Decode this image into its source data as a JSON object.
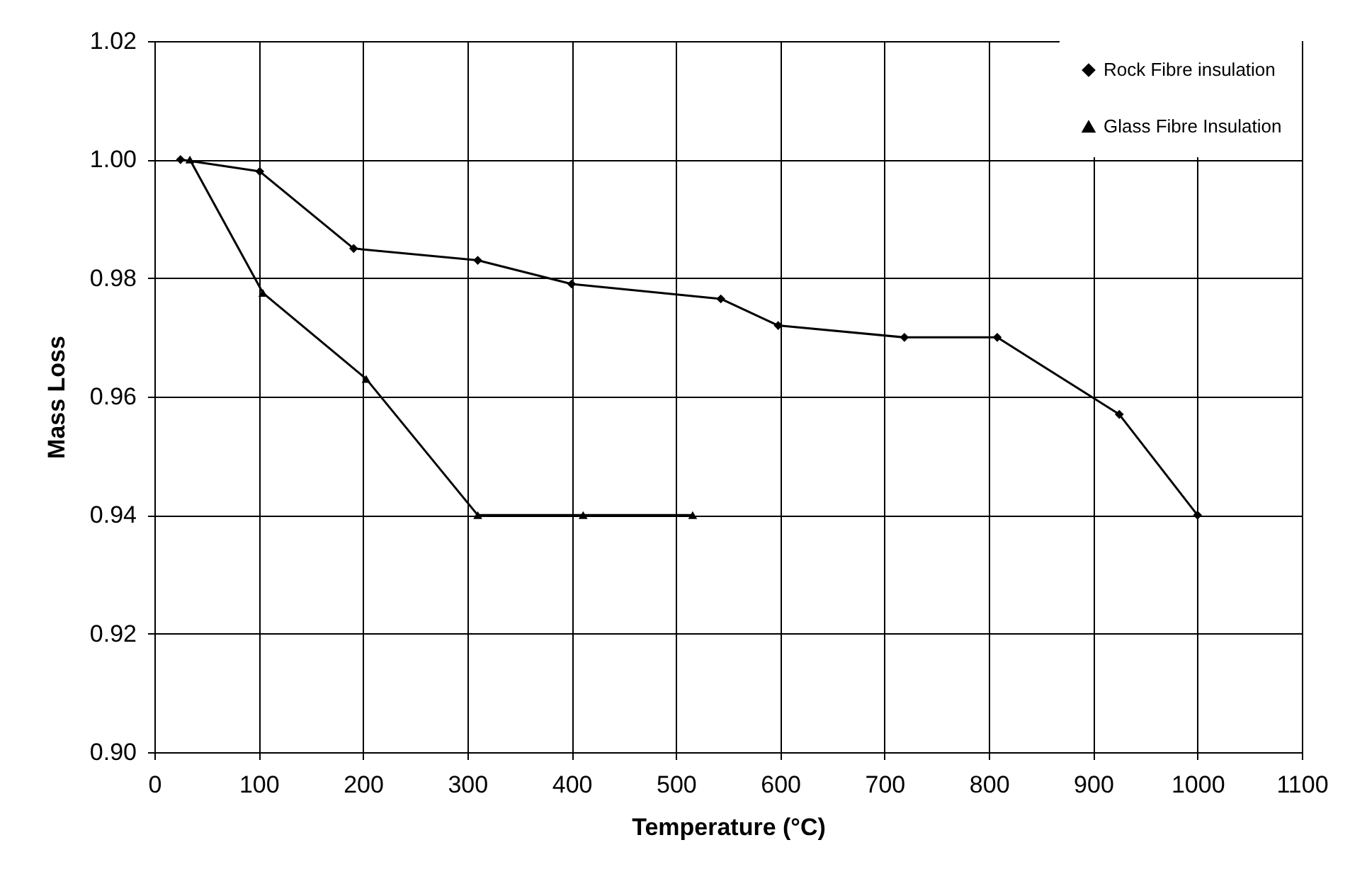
{
  "chart_data": {
    "type": "line",
    "xlabel": "Temperature (°C)",
    "ylabel": "Mass Loss",
    "series": [
      {
        "name": "Rock Fibre insulation",
        "color": "#000000",
        "marker": "diamond",
        "x": [
          25,
          101,
          191,
          310,
          400,
          543,
          598,
          719,
          808,
          925,
          1000
        ],
        "values": [
          1.0,
          0.998,
          0.985,
          0.983,
          0.979,
          0.9765,
          0.972,
          0.97,
          0.97,
          0.957,
          0.94
        ]
      },
      {
        "name": "Glass Fibre Insulation",
        "color": "#000000",
        "marker": "triangle",
        "x": [
          34,
          104,
          203,
          310,
          411,
          516
        ],
        "values": [
          1.0,
          0.9775,
          0.963,
          0.94,
          0.94,
          0.94
        ]
      }
    ],
    "xlim": [
      0,
      1100
    ],
    "xticks": [
      0,
      100,
      200,
      300,
      400,
      500,
      600,
      700,
      800,
      900,
      1000,
      1100
    ],
    "ylim": [
      0.9,
      1.02
    ],
    "yticks": [
      {
        "value": 0.9,
        "label": "0.90"
      },
      {
        "value": 0.92,
        "label": "0.92"
      },
      {
        "value": 0.94,
        "label": "0.94"
      },
      {
        "value": 0.96,
        "label": "0.96"
      },
      {
        "value": 0.98,
        "label": "0.98"
      },
      {
        "value": 1.0,
        "label": "1.00"
      },
      {
        "value": 1.02,
        "label": "1.02"
      }
    ],
    "grid": true,
    "legend": "top right",
    "line_style": "solid"
  }
}
